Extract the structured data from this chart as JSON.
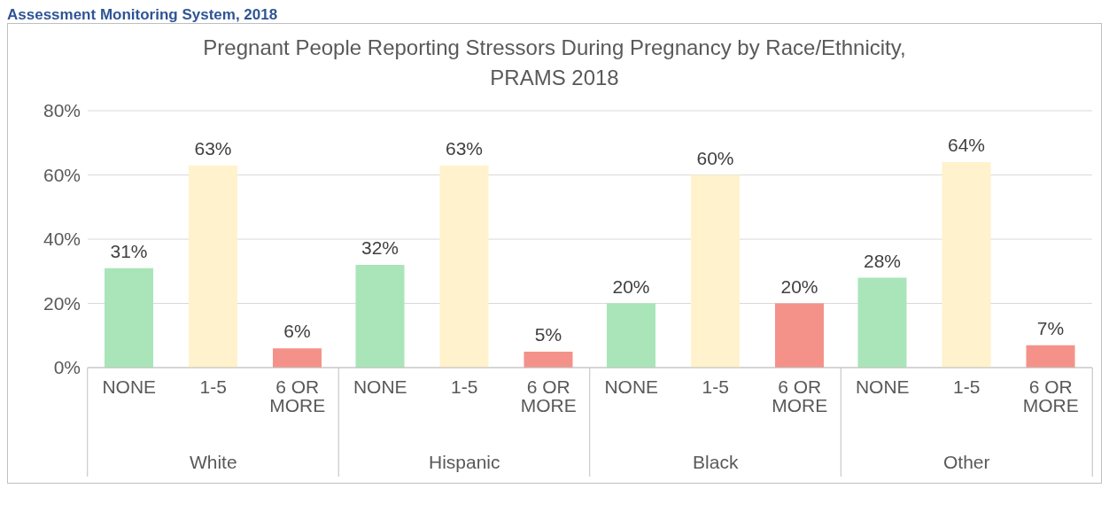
{
  "chart_data": {
    "type": "bar",
    "title": "Pregnant People Reporting Stressors During Pregnancy by Race/Ethnicity, PRAMS 2018",
    "annotations": [
      "Assessment Monitoring System, 2018"
    ],
    "categories": [
      "White",
      "Hispanic",
      "Black",
      "Other"
    ],
    "series": [
      {
        "name": "NONE",
        "color": "#a9e5b9",
        "values": [
          31,
          32,
          20,
          28
        ],
        "value_labels": [
          "31%",
          "32%",
          "20%",
          "28%"
        ]
      },
      {
        "name": "1-5",
        "color": "#fff2cc",
        "values": [
          63,
          63,
          60,
          64
        ],
        "value_labels": [
          "63%",
          "63%",
          "60%",
          "64%"
        ]
      },
      {
        "name": "6 OR MORE",
        "color": "#f4928a",
        "values": [
          6,
          5,
          20,
          7
        ],
        "value_labels": [
          "6%",
          "5%",
          "20%",
          "7%"
        ]
      }
    ],
    "ylim": [
      0,
      80
    ],
    "yticks": [
      {
        "value": 0,
        "label": "0%"
      },
      {
        "value": 20,
        "label": "20%"
      },
      {
        "value": 40,
        "label": "40%"
      },
      {
        "value": 60,
        "label": "60%"
      },
      {
        "value": 80,
        "label": "80%"
      }
    ],
    "grid": "y"
  }
}
